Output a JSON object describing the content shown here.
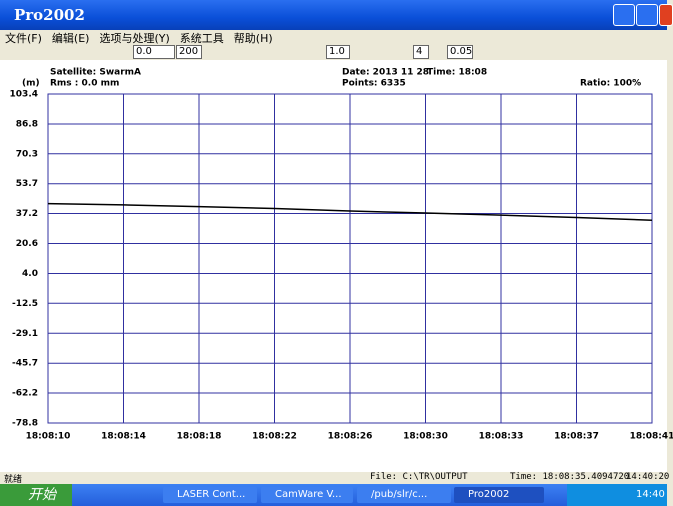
{
  "window": {
    "title": "Pro2002"
  },
  "menu": [
    "文件(F)",
    "编辑(E)",
    "选项与处理(Y)",
    "系统工具",
    "帮助(H)"
  ],
  "toolbar": [
    "0.0",
    "200",
    "1.0",
    "4",
    "0.05"
  ],
  "info": {
    "satellite": "Satellite: SwarmA",
    "rms": "Rms :  0.0 mm",
    "date": "Date: 2013 11 28",
    "time": "Time: 18:08",
    "points": "Points: 6335",
    "ratio": "Ratio: 100%"
  },
  "status": {
    "ready": "就绪",
    "file": "File: C:\\TR\\OUTPUT",
    "time": "Time: 18:08:35.4094720",
    "clock": "14:40:20"
  },
  "taskbar": {
    "start": "开始",
    "items": [
      "LASER Cont...",
      "CamWare  V...",
      "/pub/slr/c...",
      "Pro2002"
    ],
    "clock": "14:40"
  },
  "chart_data": {
    "type": "line",
    "ylabel": "(m)",
    "categories": [
      "18:08:10",
      "18:08:14",
      "18:08:18",
      "18:08:22",
      "18:08:26",
      "18:08:30",
      "18:08:33",
      "18:08:37",
      "18:08:41"
    ],
    "values": [
      42.7,
      42.0,
      41.0,
      40.0,
      38.6,
      37.5,
      36.3,
      35.0,
      33.5
    ],
    "color": "#000000",
    "ylim": [
      -78.8,
      103.4
    ],
    "yticks": [
      103.4,
      86.8,
      70.3,
      53.7,
      37.2,
      20.6,
      {
        "value": 4,
        "label": "4.0"
      },
      -12.5,
      -29.1,
      -45.7,
      -62.2,
      -78.8
    ],
    "grid": true
  }
}
